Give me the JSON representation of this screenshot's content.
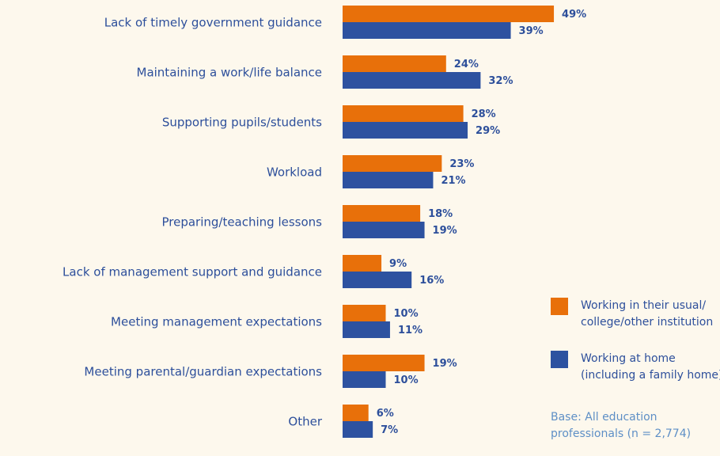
{
  "chart_data": {
    "type": "bar",
    "orientation": "horizontal",
    "categories": [
      "Lack of timely government guidance",
      "Maintaining a work/life balance",
      "Supporting pupils/students",
      "Workload",
      "Preparing/teaching lessons",
      "Lack of management support and guidance",
      "Meeting management expectations",
      "Meeting parental/guardian expectations",
      "Other"
    ],
    "series": [
      {
        "name": "Working in their usual/ college/other institution",
        "color": "#e8700a",
        "values": [
          49,
          24,
          28,
          23,
          18,
          9,
          10,
          19,
          6
        ],
        "labels": [
          "49%",
          "24%",
          "28%",
          "23%",
          "18%",
          "9%",
          "10%",
          "19%",
          "6%"
        ]
      },
      {
        "name": "Working at home (including a family home)",
        "color": "#2d52a0",
        "values": [
          39,
          32,
          29,
          21,
          19,
          16,
          11,
          10,
          7
        ],
        "labels": [
          "39%",
          "32%",
          "29%",
          "21%",
          "19%",
          "16%",
          "11%",
          "10%",
          "7%"
        ]
      }
    ],
    "legend_position": "right",
    "grid": false
  },
  "legend": [
    {
      "line1": "Working in their usual/",
      "line2": "college/other institution",
      "color": "#e8700a"
    },
    {
      "line1": "Working at home",
      "line2": "(including a family home)",
      "color": "#2d52a0"
    }
  ],
  "note": {
    "line1": "Base: All education",
    "line2": "professionals (n = 2,774)"
  }
}
